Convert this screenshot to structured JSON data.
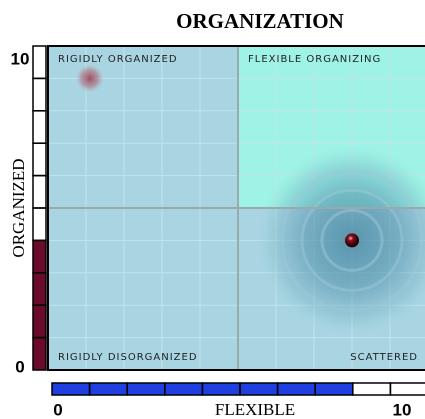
{
  "chart_data": {
    "type": "scatter",
    "title": "ORGANIZATION",
    "x_label": "FLEXIBLE",
    "y_label": "ORGANIZED",
    "quadrant_labels": [
      "RIGIDLY ORGANIZED",
      "FLEXIBLE ORGANIZING",
      "RIGIDLY DISORGANIZED",
      "SCATTERED"
    ],
    "x": [
      1.1,
      8
    ],
    "values": [
      9,
      4
    ],
    "xlim": [
      0,
      10
    ],
    "ylim": [
      0,
      10
    ],
    "xticks": [
      0,
      10
    ],
    "yticks": [
      0,
      10
    ]
  }
}
